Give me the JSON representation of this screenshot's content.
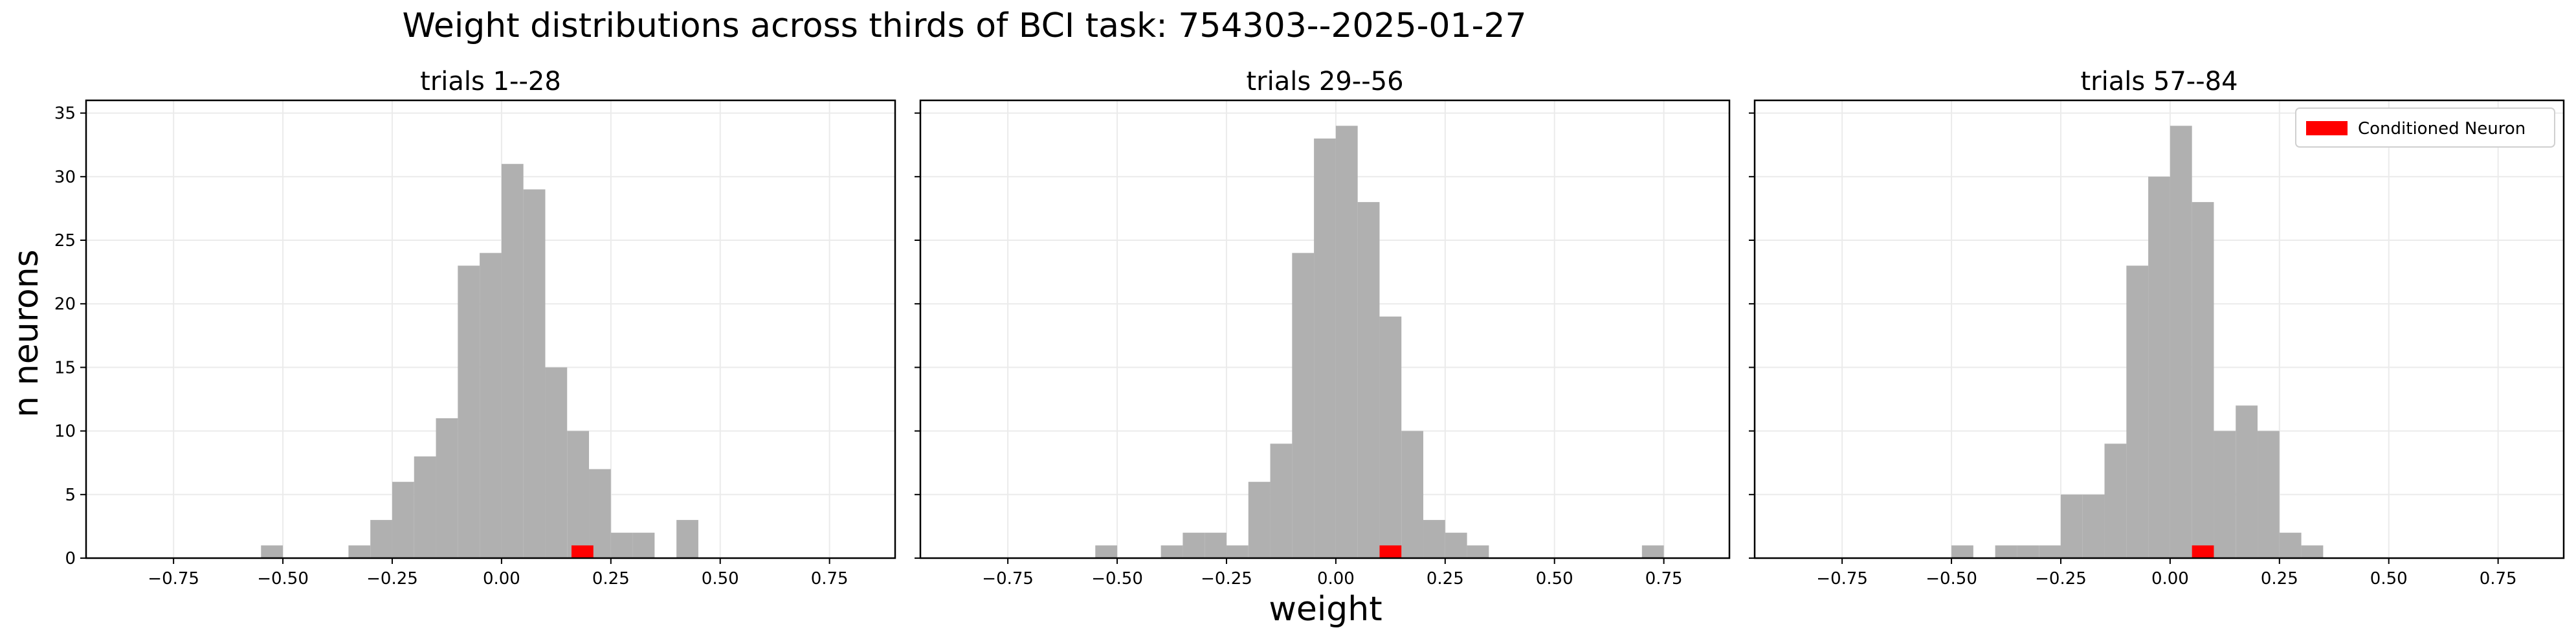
{
  "figure": {
    "suptitle": "Weight distributions across thirds of BCI task: 754303--2025-01-27",
    "xlabel": "weight",
    "ylabel": "n neurons"
  },
  "colors": {
    "histogram": "#b0b0b0",
    "conditioned": "#ff0000",
    "grid": "#ebebeb",
    "axes": "#000000"
  },
  "chart_data": [
    {
      "type": "bar",
      "title": "trials 1--28",
      "bin_width": 0.05,
      "xlim": [
        -0.95,
        0.9
      ],
      "ylim": [
        0,
        36
      ],
      "xticks": [
        -0.75,
        -0.5,
        -0.25,
        0.0,
        0.25,
        0.5,
        0.75
      ],
      "xtick_labels": [
        "−0.75",
        "−0.50",
        "−0.25",
        "0.00",
        "0.25",
        "0.50",
        "0.75"
      ],
      "yticks": [
        0,
        5,
        10,
        15,
        20,
        25,
        30,
        35
      ],
      "ytick_labels": [
        "0",
        "5",
        "10",
        "15",
        "20",
        "25",
        "30",
        "35"
      ],
      "grid": true,
      "series": [
        {
          "name": "",
          "bins": [
            {
              "x": -0.55,
              "count": 1
            },
            {
              "x": -0.35,
              "count": 1
            },
            {
              "x": -0.3,
              "count": 3
            },
            {
              "x": -0.25,
              "count": 6
            },
            {
              "x": -0.2,
              "count": 8
            },
            {
              "x": -0.15,
              "count": 11
            },
            {
              "x": -0.1,
              "count": 23
            },
            {
              "x": -0.05,
              "count": 24
            },
            {
              "x": 0.0,
              "count": 31
            },
            {
              "x": 0.05,
              "count": 29
            },
            {
              "x": 0.1,
              "count": 15
            },
            {
              "x": 0.15,
              "count": 10
            },
            {
              "x": 0.2,
              "count": 7
            },
            {
              "x": 0.25,
              "count": 2
            },
            {
              "x": 0.3,
              "count": 2
            },
            {
              "x": 0.4,
              "count": 3
            }
          ]
        },
        {
          "name": "Conditioned Neuron",
          "bins": [
            {
              "x": 0.16,
              "count": 1
            }
          ]
        }
      ],
      "legend": null
    },
    {
      "type": "bar",
      "title": "trials 29--56",
      "bin_width": 0.05,
      "xlim": [
        -0.95,
        0.9
      ],
      "ylim": [
        0,
        36
      ],
      "xticks": [
        -0.75,
        -0.5,
        -0.25,
        0.0,
        0.25,
        0.5,
        0.75
      ],
      "xtick_labels": [
        "−0.75",
        "−0.50",
        "−0.25",
        "0.00",
        "0.25",
        "0.50",
        "0.75"
      ],
      "yticks": [
        0,
        5,
        10,
        15,
        20,
        25,
        30,
        35
      ],
      "ytick_labels": [
        "0",
        "5",
        "10",
        "15",
        "20",
        "25",
        "30",
        "35"
      ],
      "grid": true,
      "series": [
        {
          "name": "",
          "bins": [
            {
              "x": -0.55,
              "count": 1
            },
            {
              "x": -0.4,
              "count": 1
            },
            {
              "x": -0.35,
              "count": 2
            },
            {
              "x": -0.3,
              "count": 2
            },
            {
              "x": -0.25,
              "count": 1
            },
            {
              "x": -0.2,
              "count": 6
            },
            {
              "x": -0.15,
              "count": 9
            },
            {
              "x": -0.1,
              "count": 24
            },
            {
              "x": -0.05,
              "count": 33
            },
            {
              "x": 0.0,
              "count": 34
            },
            {
              "x": 0.05,
              "count": 28
            },
            {
              "x": 0.1,
              "count": 19
            },
            {
              "x": 0.15,
              "count": 10
            },
            {
              "x": 0.2,
              "count": 3
            },
            {
              "x": 0.25,
              "count": 2
            },
            {
              "x": 0.3,
              "count": 1
            },
            {
              "x": 0.7,
              "count": 1
            }
          ]
        },
        {
          "name": "Conditioned Neuron",
          "bins": [
            {
              "x": 0.1,
              "count": 1
            }
          ]
        }
      ],
      "legend": null
    },
    {
      "type": "bar",
      "title": "trials 57--84",
      "bin_width": 0.05,
      "xlim": [
        -0.95,
        0.9
      ],
      "ylim": [
        0,
        36
      ],
      "xticks": [
        -0.75,
        -0.5,
        -0.25,
        0.0,
        0.25,
        0.5,
        0.75
      ],
      "xtick_labels": [
        "−0.75",
        "−0.50",
        "−0.25",
        "0.00",
        "0.25",
        "0.50",
        "0.75"
      ],
      "yticks": [
        0,
        5,
        10,
        15,
        20,
        25,
        30,
        35
      ],
      "ytick_labels": [
        "0",
        "5",
        "10",
        "15",
        "20",
        "25",
        "30",
        "35"
      ],
      "grid": true,
      "series": [
        {
          "name": "",
          "bins": [
            {
              "x": -0.5,
              "count": 1
            },
            {
              "x": -0.4,
              "count": 1
            },
            {
              "x": -0.35,
              "count": 1
            },
            {
              "x": -0.3,
              "count": 1
            },
            {
              "x": -0.25,
              "count": 5
            },
            {
              "x": -0.2,
              "count": 5
            },
            {
              "x": -0.15,
              "count": 9
            },
            {
              "x": -0.1,
              "count": 23
            },
            {
              "x": -0.05,
              "count": 30
            },
            {
              "x": 0.0,
              "count": 34
            },
            {
              "x": 0.05,
              "count": 28
            },
            {
              "x": 0.1,
              "count": 10
            },
            {
              "x": 0.15,
              "count": 12
            },
            {
              "x": 0.2,
              "count": 10
            },
            {
              "x": 0.25,
              "count": 2
            },
            {
              "x": 0.3,
              "count": 1
            }
          ]
        },
        {
          "name": "Conditioned Neuron",
          "bins": [
            {
              "x": 0.05,
              "count": 1
            }
          ]
        }
      ],
      "legend": {
        "placement": "top-right",
        "entries": [
          "Conditioned Neuron"
        ]
      }
    }
  ]
}
